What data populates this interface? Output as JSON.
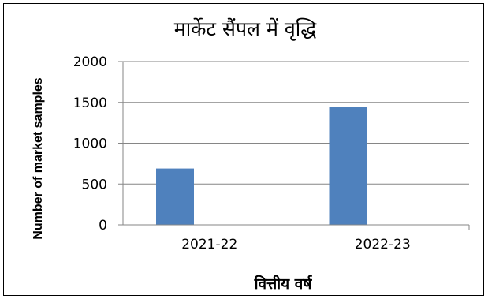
{
  "chart_data": {
    "type": "bar",
    "title": "मार्केट सैंपल में वृद्धि",
    "xlabel": "वित्तीय वर्ष",
    "ylabel": "Number of market samples",
    "categories": [
      "2021-22",
      "2022-23"
    ],
    "series": [
      {
        "values": [
          690,
          1445
        ],
        "color": "#4f81bd"
      }
    ],
    "ylim": [
      0,
      2000
    ],
    "yticks": [
      0,
      500,
      1000,
      1500,
      2000
    ],
    "grid": true,
    "legend": "none"
  }
}
